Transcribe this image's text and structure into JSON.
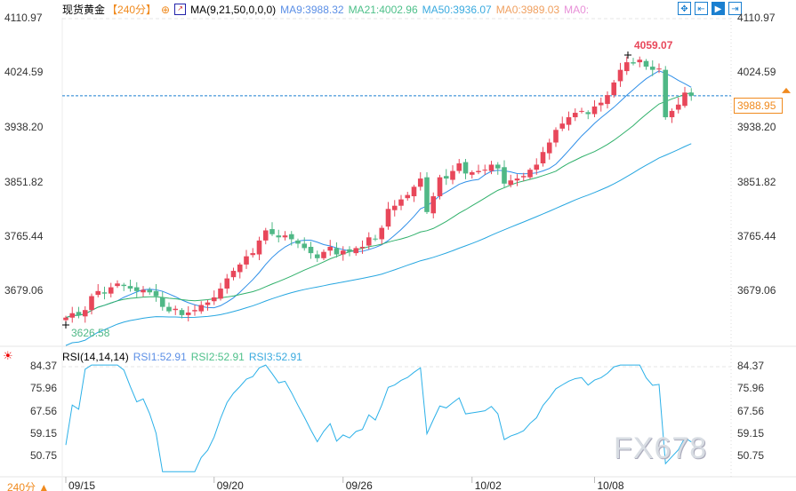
{
  "header": {
    "symbol": "现货黄金",
    "period": "【240分】",
    "add_icon": "circle-plus-icon",
    "ma_label": "MA(9,21,50,0,0,0)",
    "ma9": "MA9:3988.32",
    "ma21": "MA21:4002.96",
    "ma50": "MA50:3936.07",
    "ma0a": "MA0:3989.03",
    "ma0b": "MA0:"
  },
  "tools": [
    {
      "icon": "crosshair-icon",
      "label": "✥"
    },
    {
      "icon": "range-icon",
      "label": "⇤"
    },
    {
      "icon": "play-icon",
      "label": "▶"
    },
    {
      "icon": "exit-icon",
      "label": "⇥"
    }
  ],
  "current_price": "3988.95",
  "price_axis": [
    "4110.97",
    "4024.59",
    "3938.20",
    "3851.82",
    "3765.44",
    "3679.06"
  ],
  "rsi": {
    "label": "RSI(14,14,14)",
    "rsi1": "RSI1:52.91",
    "rsi2": "RSI2:52.91",
    "rsi3": "RSI3:52.91",
    "axis": [
      "84.37",
      "75.96",
      "67.56",
      "59.15",
      "50.75"
    ]
  },
  "period_footer": "240分 ▲",
  "watermark": "FX678",
  "colors": {
    "up": "#e8475a",
    "down": "#4fb886",
    "ma9": "#2f8fe8",
    "ma21": "#2fb06a",
    "ma50": "#26a6e0",
    "rsi": "#2ab0e8",
    "current": "#f08a1e"
  },
  "chart_data": {
    "type": "candlestick",
    "ylim": [
      3600,
      4120
    ],
    "max_label": "4059.07",
    "min_label": "3626.58",
    "x_labels": [
      {
        "index": 0,
        "label": "09/15"
      },
      {
        "index": 23,
        "label": "09/20"
      },
      {
        "index": 43,
        "label": "09/26"
      },
      {
        "index": 63,
        "label": "10/02"
      },
      {
        "index": 82,
        "label": "10/08"
      }
    ],
    "close": [
      3638,
      3645,
      3642,
      3650,
      3672,
      3680,
      3676,
      3686,
      3692,
      3688,
      3684,
      3680,
      3682,
      3678,
      3672,
      3655,
      3648,
      3652,
      3642,
      3646,
      3650,
      3658,
      3662,
      3670,
      3684,
      3700,
      3712,
      3722,
      3735,
      3740,
      3760,
      3776,
      3770,
      3765,
      3768,
      3762,
      3755,
      3748,
      3740,
      3732,
      3742,
      3750,
      3738,
      3744,
      3742,
      3748,
      3750,
      3765,
      3762,
      3780,
      3810,
      3815,
      3825,
      3832,
      3845,
      3858,
      3805,
      3830,
      3860,
      3858,
      3870,
      3882,
      3866,
      3868,
      3870,
      3872,
      3880,
      3874,
      3850,
      3855,
      3858,
      3862,
      3872,
      3880,
      3900,
      3915,
      3935,
      3945,
      3955,
      3962,
      3965,
      3960,
      3972,
      3978,
      3990,
      4010,
      4030,
      4042,
      4040,
      4046,
      4035,
      4030,
      4032,
      3955,
      3965,
      3975,
      3994,
      3989
    ]
  }
}
